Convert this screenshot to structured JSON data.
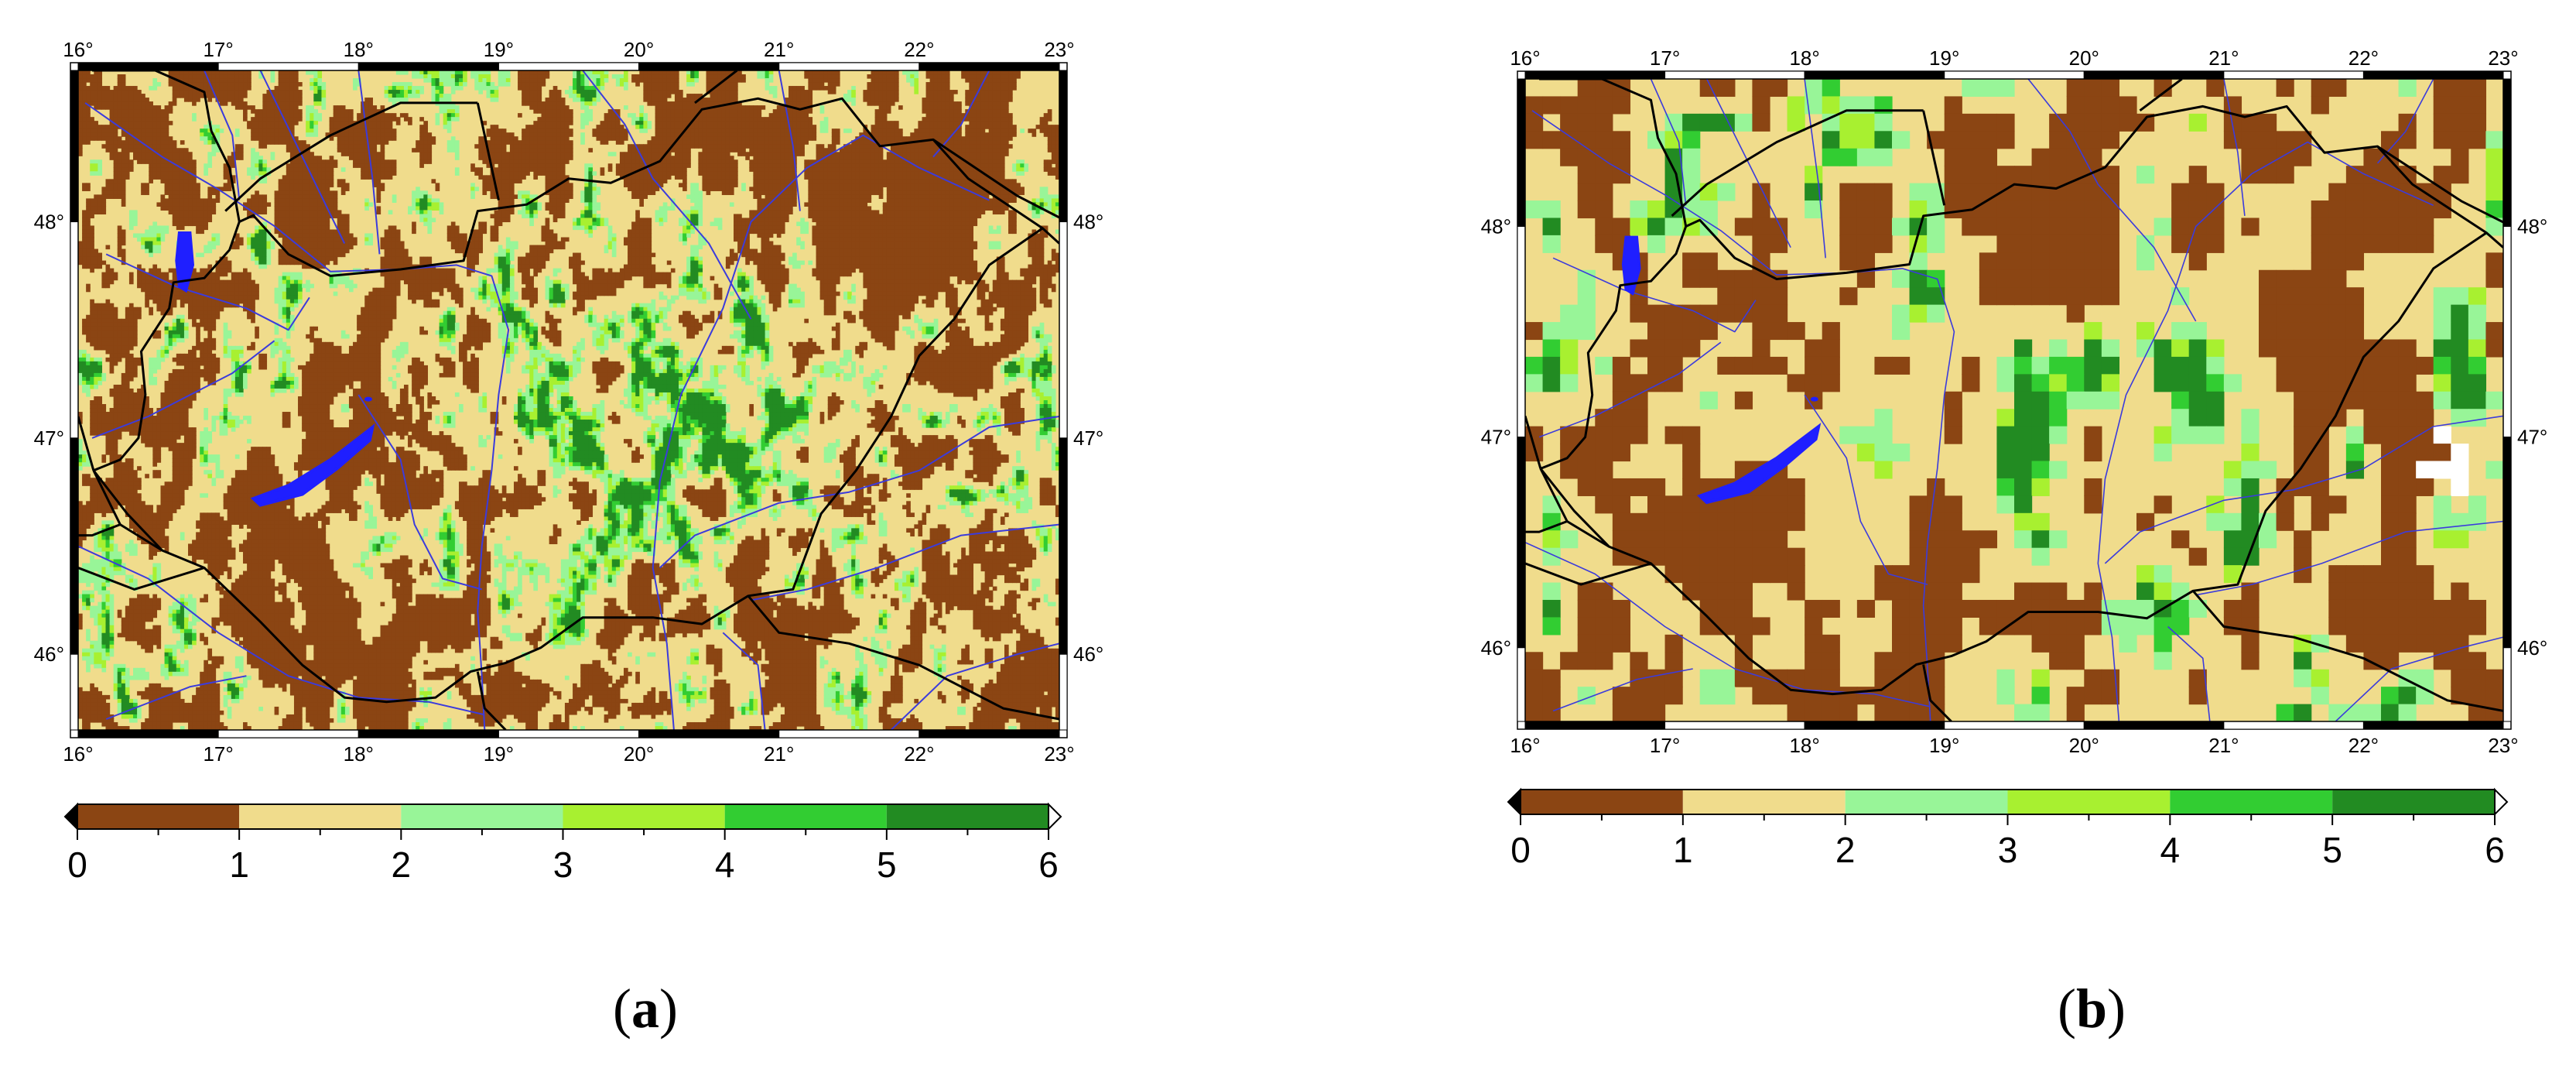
{
  "panels": [
    {
      "label_open": "(",
      "label_letter": "a",
      "label_close": ")",
      "resolution": "fine",
      "lon_ticks": [
        "16°",
        "17°",
        "18°",
        "19°",
        "20°",
        "21°",
        "22°",
        "23°"
      ],
      "lat_ticks": [
        "48°",
        "47°",
        "46°"
      ],
      "colorbar_ticks": [
        "0",
        "1",
        "2",
        "3",
        "4",
        "5",
        "6"
      ]
    },
    {
      "label_open": "(",
      "label_letter": "b",
      "label_close": ")",
      "resolution": "coarse",
      "lon_ticks": [
        "16°",
        "17°",
        "18°",
        "19°",
        "20°",
        "21°",
        "22°",
        "23°"
      ],
      "lat_ticks": [
        "48°",
        "47°",
        "46°"
      ],
      "colorbar_ticks": [
        "0",
        "1",
        "2",
        "3",
        "4",
        "5",
        "6"
      ]
    }
  ],
  "map_extent": {
    "lon_min": 16,
    "lon_max": 23,
    "lat_min": 45.65,
    "lat_max": 48.7
  },
  "colorbar_classes": [
    {
      "range": "0-1",
      "color": "#8b4513"
    },
    {
      "range": "1-2",
      "color": "#f0dc8c"
    },
    {
      "range": "2-3",
      "color": "#98f598"
    },
    {
      "range": "3-4",
      "color": "#a8f030"
    },
    {
      "range": "4-5",
      "color": "#32cd32"
    },
    {
      "range": "5-6",
      "color": "#228b22"
    }
  ],
  "colors": {
    "river": "#3b3bdc",
    "lake": "#1f1fff",
    "border": "#000000",
    "frame_dark": "#000000",
    "frame_light": "#ffffff"
  }
}
